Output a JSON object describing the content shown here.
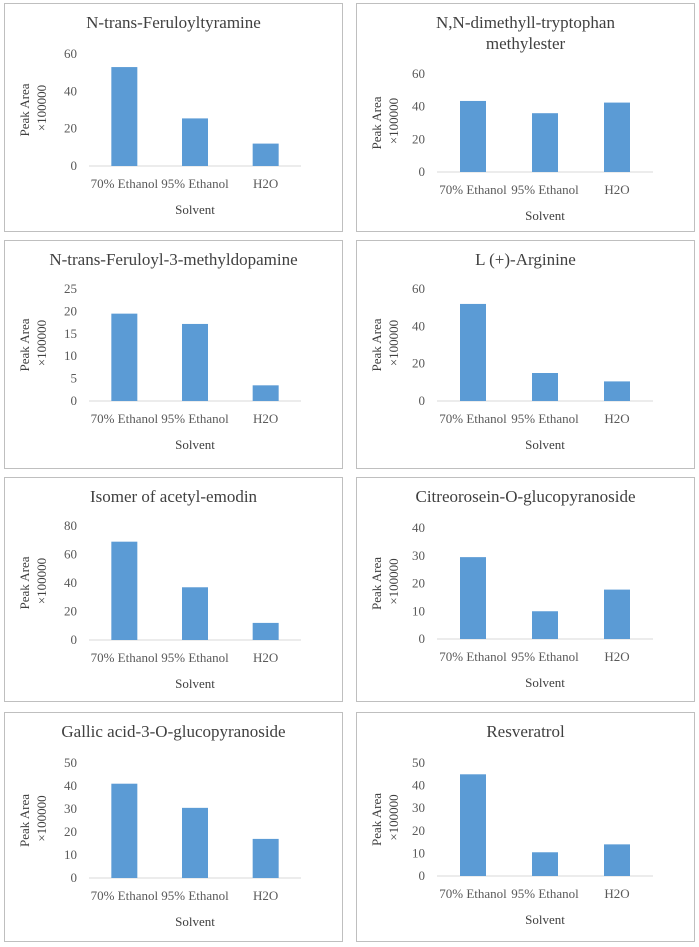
{
  "chart_data": [
    {
      "type": "bar",
      "title": [
        "N-trans-Feruloyltyramine"
      ],
      "categories": [
        "70% Ethanol",
        "95% Ethanol",
        "H2O"
      ],
      "values": [
        53,
        25.5,
        12
      ],
      "ylim": [
        0,
        60
      ],
      "yticks": [
        0,
        20,
        40,
        60
      ],
      "ylabel": "Peak Area",
      "ylabel2": "×100000",
      "xlabel": "Solvent"
    },
    {
      "type": "bar",
      "title": [
        "N,N-dimethyll-tryptophan",
        "methylester"
      ],
      "categories": [
        "70% Ethanol",
        "95% Ethanol",
        "H2O"
      ],
      "values": [
        43.5,
        36,
        42.5
      ],
      "ylim": [
        0,
        60
      ],
      "yticks": [
        0,
        20,
        40,
        60
      ],
      "ylabel": "Peak Area",
      "ylabel2": "×100000",
      "xlabel": "Solvent"
    },
    {
      "type": "bar",
      "title": [
        "N-trans-Feruloyl-3-methyldopamine"
      ],
      "categories": [
        "70% Ethanol",
        "95% Ethanol",
        "H2O"
      ],
      "values": [
        19.5,
        17.2,
        3.5
      ],
      "ylim": [
        0,
        25
      ],
      "yticks": [
        0,
        5,
        10,
        15,
        20,
        25
      ],
      "ylabel": "Peak Area",
      "ylabel2": "×100000",
      "xlabel": "Solvent"
    },
    {
      "type": "bar",
      "title": [
        "L (+)-Arginine"
      ],
      "categories": [
        "70% Ethanol",
        "95% Ethanol",
        "H2O"
      ],
      "values": [
        52,
        15,
        10.5
      ],
      "ylim": [
        0,
        60
      ],
      "yticks": [
        0,
        20,
        40,
        60
      ],
      "ylabel": "Peak Area",
      "ylabel2": "×100000",
      "xlabel": "Solvent"
    },
    {
      "type": "bar",
      "title": [
        "Isomer of acetyl-emodin"
      ],
      "categories": [
        "70% Ethanol",
        "95% Ethanol",
        "H2O"
      ],
      "values": [
        69,
        37,
        12
      ],
      "ylim": [
        0,
        80
      ],
      "yticks": [
        0,
        20,
        40,
        60,
        80
      ],
      "ylabel": "Peak Area",
      "ylabel2": "×100000",
      "xlabel": "Solvent"
    },
    {
      "type": "bar",
      "title": [
        "Citreorosein-O-glucopyranoside"
      ],
      "categories": [
        "70% Ethanol",
        "95% Ethanol",
        "H2O"
      ],
      "values": [
        29.5,
        10,
        17.8
      ],
      "ylim": [
        0,
        40
      ],
      "yticks": [
        0,
        10,
        20,
        30,
        40
      ],
      "ylabel": "Peak Area",
      "ylabel2": "×100000",
      "xlabel": "Solvent"
    },
    {
      "type": "bar",
      "title": [
        "Gallic acid-3-O-glucopyranoside"
      ],
      "categories": [
        "70% Ethanol",
        "95% Ethanol",
        "H2O"
      ],
      "values": [
        41,
        30.5,
        17
      ],
      "ylim": [
        0,
        50
      ],
      "yticks": [
        0,
        10,
        20,
        30,
        40,
        50
      ],
      "ylabel": "Peak Area",
      "ylabel2": "×100000",
      "xlabel": "Solvent"
    },
    {
      "type": "bar",
      "title": [
        "Resveratrol"
      ],
      "categories": [
        "70% Ethanol",
        "95% Ethanol",
        "H2O"
      ],
      "values": [
        45,
        10.5,
        14
      ],
      "ylim": [
        0,
        50
      ],
      "yticks": [
        0,
        10,
        20,
        30,
        40,
        50
      ],
      "ylabel": "Peak Area",
      "ylabel2": "×100000",
      "xlabel": "Solvent"
    }
  ],
  "colors": {
    "bar": "#5b9bd5",
    "axis": "#d9d9d9",
    "text": "#595959",
    "border": "#bfbfbf"
  }
}
